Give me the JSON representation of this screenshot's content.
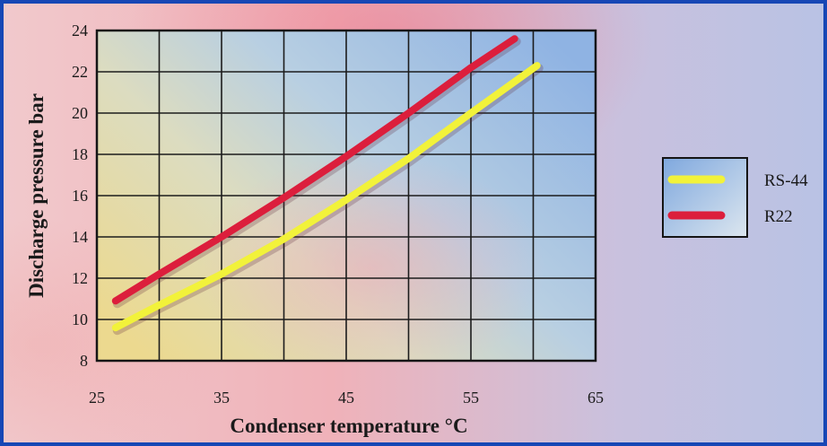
{
  "chart_data": {
    "type": "line",
    "xlabel": "Condenser temperature °C",
    "ylabel": "Discharge pressure bar",
    "xlim": [
      25,
      65
    ],
    "ylim": [
      8,
      24
    ],
    "xticks": [
      25,
      35,
      45,
      55,
      65
    ],
    "yticks": [
      8,
      10,
      12,
      14,
      16,
      18,
      20,
      22,
      24
    ],
    "grid": true,
    "legend_position": "right",
    "series": [
      {
        "name": "RS-44",
        "color": "#f2f23a",
        "x": [
          26.5,
          30,
          35,
          40,
          45,
          50,
          55,
          60.3
        ],
        "y": [
          9.6,
          10.7,
          12.2,
          13.9,
          15.8,
          17.8,
          20.0,
          22.3
        ]
      },
      {
        "name": "R22",
        "color": "#dc1e3c",
        "x": [
          26.5,
          30,
          35,
          40,
          45,
          50,
          55,
          58.5
        ],
        "y": [
          10.9,
          12.2,
          14.0,
          15.9,
          17.9,
          20.0,
          22.2,
          23.6
        ]
      }
    ]
  }
}
